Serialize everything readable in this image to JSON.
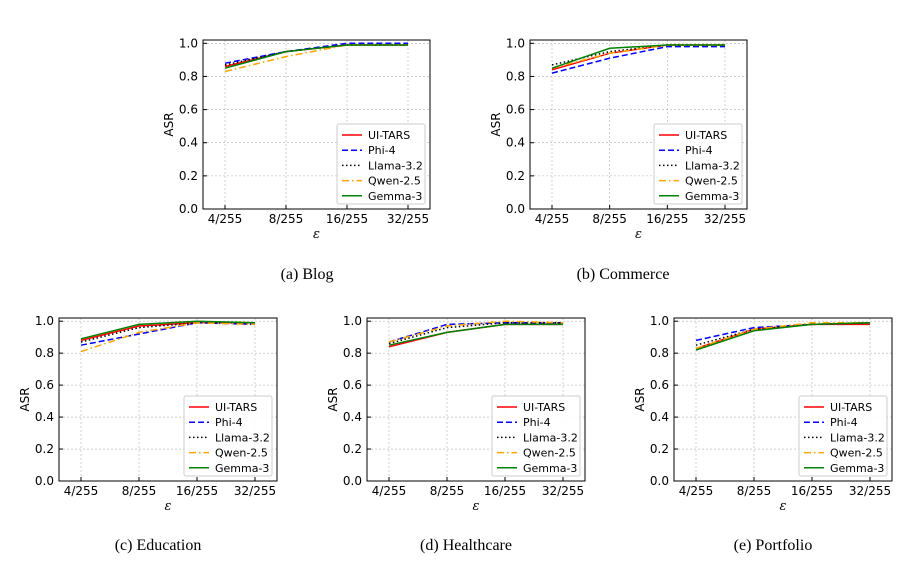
{
  "legend": [
    {
      "name": "UI-TARS",
      "color": "#ff0000",
      "dash": "solid"
    },
    {
      "name": "Phi-4",
      "color": "#0000ff",
      "dash": "dashed"
    },
    {
      "name": "Llama-3.2",
      "color": "#000000",
      "dash": "dotted"
    },
    {
      "name": "Qwen-2.5",
      "color": "#ffa500",
      "dash": "dashdot"
    },
    {
      "name": "Gemma-3",
      "color": "#008000",
      "dash": "solid"
    }
  ],
  "chart_data": [
    {
      "type": "line",
      "caption": "(a)  Blog",
      "xlabel": "ε",
      "ylabel": "ASR",
      "categories": [
        "4/255",
        "8/255",
        "16/255",
        "32/255"
      ],
      "yticks": [
        "0.0",
        "0.2",
        "0.4",
        "0.6",
        "0.8",
        "1.0"
      ],
      "ylim": [
        0,
        1.02
      ],
      "grid": true,
      "legend_position": "lower-right",
      "series": [
        {
          "name": "UI-TARS",
          "values": [
            0.86,
            0.95,
            0.99,
            0.99
          ]
        },
        {
          "name": "Phi-4",
          "values": [
            0.88,
            0.95,
            1.0,
            1.0
          ]
        },
        {
          "name": "Llama-3.2",
          "values": [
            0.87,
            0.95,
            0.99,
            0.99
          ]
        },
        {
          "name": "Qwen-2.5",
          "values": [
            0.83,
            0.92,
            0.99,
            0.99
          ]
        },
        {
          "name": "Gemma-3",
          "values": [
            0.85,
            0.95,
            0.99,
            0.99
          ]
        }
      ]
    },
    {
      "type": "line",
      "caption": "(b)  Commerce",
      "xlabel": "ε",
      "ylabel": "ASR",
      "categories": [
        "4/255",
        "8/255",
        "16/255",
        "32/255"
      ],
      "yticks": [
        "0.0",
        "0.2",
        "0.4",
        "0.6",
        "0.8",
        "1.0"
      ],
      "ylim": [
        0,
        1.02
      ],
      "grid": true,
      "legend_position": "lower-right",
      "series": [
        {
          "name": "UI-TARS",
          "values": [
            0.84,
            0.94,
            0.99,
            0.99
          ]
        },
        {
          "name": "Phi-4",
          "values": [
            0.82,
            0.91,
            0.98,
            0.98
          ]
        },
        {
          "name": "Llama-3.2",
          "values": [
            0.87,
            0.95,
            0.99,
            0.99
          ]
        },
        {
          "name": "Qwen-2.5",
          "values": [
            0.85,
            0.94,
            0.99,
            0.99
          ]
        },
        {
          "name": "Gemma-3",
          "values": [
            0.85,
            0.97,
            0.99,
            0.99
          ]
        }
      ]
    },
    {
      "type": "line",
      "caption": "(c)  Education",
      "xlabel": "ε",
      "ylabel": "ASR",
      "categories": [
        "4/255",
        "8/255",
        "16/255",
        "32/255"
      ],
      "yticks": [
        "0.0",
        "0.2",
        "0.4",
        "0.6",
        "0.8",
        "1.0"
      ],
      "ylim": [
        0,
        1.02
      ],
      "grid": true,
      "legend_position": "lower-right",
      "series": [
        {
          "name": "UI-TARS",
          "values": [
            0.88,
            0.97,
            0.99,
            0.99
          ]
        },
        {
          "name": "Phi-4",
          "values": [
            0.85,
            0.92,
            0.99,
            0.98
          ]
        },
        {
          "name": "Llama-3.2",
          "values": [
            0.87,
            0.96,
            0.99,
            0.99
          ]
        },
        {
          "name": "Qwen-2.5",
          "values": [
            0.81,
            0.93,
            0.99,
            0.98
          ]
        },
        {
          "name": "Gemma-3",
          "values": [
            0.89,
            0.98,
            1.0,
            0.99
          ]
        }
      ]
    },
    {
      "type": "line",
      "caption": "(d)  Healthcare",
      "xlabel": "ε",
      "ylabel": "ASR",
      "categories": [
        "4/255",
        "8/255",
        "16/255",
        "32/255"
      ],
      "yticks": [
        "0.0",
        "0.2",
        "0.4",
        "0.6",
        "0.8",
        "1.0"
      ],
      "ylim": [
        0,
        1.02
      ],
      "grid": true,
      "legend_position": "lower-right",
      "series": [
        {
          "name": "UI-TARS",
          "values": [
            0.84,
            0.93,
            0.98,
            0.98
          ]
        },
        {
          "name": "Phi-4",
          "values": [
            0.87,
            0.98,
            0.99,
            0.99
          ]
        },
        {
          "name": "Llama-3.2",
          "values": [
            0.86,
            0.96,
            0.99,
            0.99
          ]
        },
        {
          "name": "Qwen-2.5",
          "values": [
            0.87,
            0.97,
            1.0,
            0.99
          ]
        },
        {
          "name": "Gemma-3",
          "values": [
            0.85,
            0.93,
            0.98,
            0.98
          ]
        }
      ]
    },
    {
      "type": "line",
      "caption": "(e)  Portfolio",
      "xlabel": "ε",
      "ylabel": "ASR",
      "categories": [
        "4/255",
        "8/255",
        "16/255",
        "32/255"
      ],
      "yticks": [
        "0.0",
        "0.2",
        "0.4",
        "0.6",
        "0.8",
        "1.0"
      ],
      "ylim": [
        0,
        1.02
      ],
      "grid": true,
      "legend_position": "lower-right",
      "series": [
        {
          "name": "UI-TARS",
          "values": [
            0.83,
            0.95,
            0.98,
            0.98
          ]
        },
        {
          "name": "Phi-4",
          "values": [
            0.88,
            0.96,
            0.98,
            0.99
          ]
        },
        {
          "name": "Llama-3.2",
          "values": [
            0.85,
            0.95,
            0.98,
            0.99
          ]
        },
        {
          "name": "Qwen-2.5",
          "values": [
            0.83,
            0.95,
            0.99,
            0.99
          ]
        },
        {
          "name": "Gemma-3",
          "values": [
            0.82,
            0.94,
            0.98,
            0.99
          ]
        }
      ]
    }
  ]
}
